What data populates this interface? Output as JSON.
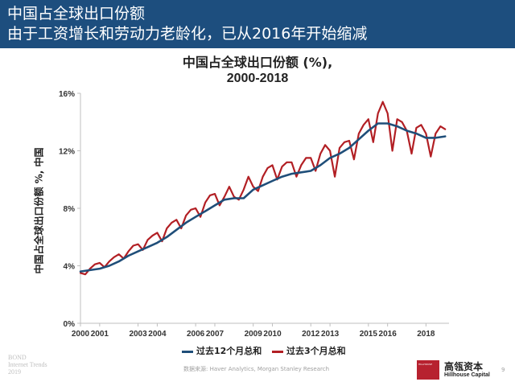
{
  "header": {
    "line1": "中国占全球出口份额",
    "line2": "由于工资增长和劳动力老龄化，已从2016年开始缩减",
    "bg_color": "#1d4e7e"
  },
  "chart_data": {
    "type": "line",
    "title_line1": "中国占全球出口份额 (%),",
    "title_line2": "2000-2018",
    "ylabel": "中国占全球出口份额 %, 中国",
    "xlabel": "",
    "ylim": [
      0,
      16
    ],
    "yticks": [
      "0%",
      "4%",
      "8%",
      "12%",
      "16%"
    ],
    "ytick_values": [
      0,
      4,
      8,
      12,
      16
    ],
    "xticks": [
      "2000",
      "2001",
      "2003",
      "2004",
      "2006",
      "2007",
      "2009",
      "2010",
      "2012",
      "2013",
      "2015",
      "2016",
      "2018"
    ],
    "xtick_values": [
      2000,
      2001,
      2003,
      2004,
      2006,
      2007,
      2009,
      2010,
      2012,
      2013,
      2015,
      2016,
      2018
    ],
    "xlim": [
      2000,
      2019.2
    ],
    "grid": false,
    "legend_position": "bottom",
    "series": [
      {
        "name": "过去12个月总和",
        "color": "#1f4e79",
        "x": [
          2000.0,
          2000.5,
          2001.0,
          2001.5,
          2002.0,
          2002.5,
          2003.0,
          2003.5,
          2004.0,
          2004.5,
          2005.0,
          2005.5,
          2006.0,
          2006.5,
          2007.0,
          2007.5,
          2008.0,
          2008.5,
          2009.0,
          2009.5,
          2010.0,
          2010.5,
          2011.0,
          2011.5,
          2012.0,
          2012.5,
          2013.0,
          2013.5,
          2014.0,
          2014.5,
          2015.0,
          2015.5,
          2016.0,
          2016.5,
          2017.0,
          2017.5,
          2018.0,
          2018.5,
          2019.0
        ],
        "values": [
          3.6,
          3.7,
          3.8,
          4.0,
          4.3,
          4.7,
          5.0,
          5.3,
          5.6,
          6.0,
          6.5,
          7.0,
          7.4,
          7.8,
          8.2,
          8.6,
          8.7,
          8.7,
          9.3,
          9.6,
          9.9,
          10.2,
          10.4,
          10.5,
          10.6,
          11.0,
          11.5,
          11.8,
          12.2,
          12.8,
          13.4,
          13.9,
          13.9,
          13.7,
          13.4,
          13.2,
          12.9,
          12.9,
          13.0
        ]
      },
      {
        "name": "过去3个月总和",
        "color": "#b21f24",
        "x": [
          2000.0,
          2000.25,
          2000.5,
          2000.75,
          2001.0,
          2001.25,
          2001.5,
          2001.75,
          2002.0,
          2002.25,
          2002.5,
          2002.75,
          2003.0,
          2003.25,
          2003.5,
          2003.75,
          2004.0,
          2004.25,
          2004.5,
          2004.75,
          2005.0,
          2005.25,
          2005.5,
          2005.75,
          2006.0,
          2006.25,
          2006.5,
          2006.75,
          2007.0,
          2007.25,
          2007.5,
          2007.75,
          2008.0,
          2008.25,
          2008.5,
          2008.75,
          2009.0,
          2009.25,
          2009.5,
          2009.75,
          2010.0,
          2010.25,
          2010.5,
          2010.75,
          2011.0,
          2011.25,
          2011.5,
          2011.75,
          2012.0,
          2012.25,
          2012.5,
          2012.75,
          2013.0,
          2013.25,
          2013.5,
          2013.75,
          2014.0,
          2014.25,
          2014.5,
          2014.75,
          2015.0,
          2015.25,
          2015.5,
          2015.75,
          2016.0,
          2016.25,
          2016.5,
          2016.75,
          2017.0,
          2017.25,
          2017.5,
          2017.75,
          2018.0,
          2018.25,
          2018.5,
          2018.75,
          2019.0
        ],
        "values": [
          3.5,
          3.4,
          3.8,
          4.1,
          4.2,
          3.9,
          4.3,
          4.6,
          4.8,
          4.5,
          5.0,
          5.4,
          5.5,
          5.1,
          5.8,
          6.1,
          6.3,
          5.7,
          6.6,
          7.0,
          7.2,
          6.6,
          7.5,
          7.9,
          8.0,
          7.4,
          8.4,
          8.9,
          9.0,
          8.2,
          8.8,
          9.5,
          8.8,
          8.6,
          9.3,
          10.2,
          9.5,
          9.2,
          10.2,
          10.8,
          11.0,
          10.0,
          10.9,
          11.2,
          11.2,
          10.2,
          11.0,
          11.5,
          11.5,
          10.6,
          11.8,
          12.4,
          12.0,
          10.2,
          12.2,
          12.6,
          12.7,
          11.4,
          13.2,
          13.8,
          14.2,
          12.6,
          14.6,
          15.4,
          14.6,
          12.0,
          14.2,
          14.0,
          13.4,
          11.8,
          13.6,
          13.8,
          13.2,
          11.6,
          13.2,
          13.7,
          13.5
        ]
      }
    ]
  },
  "legend": {
    "item1_label": "过去12个月总和",
    "item2_label": "过去3个月总和"
  },
  "footer": {
    "brand_line1": "BOND",
    "brand_line2": "Internet Trends",
    "brand_line3": "2019",
    "source": "数据来源: Haver Analytics, Morgan Stanley Research",
    "logo_small": "HILLHOUSE",
    "logo_cn": "高瓴资本",
    "logo_en": "Hillhouse Capital",
    "logo_color": "#b7222f",
    "page_number": "9"
  }
}
